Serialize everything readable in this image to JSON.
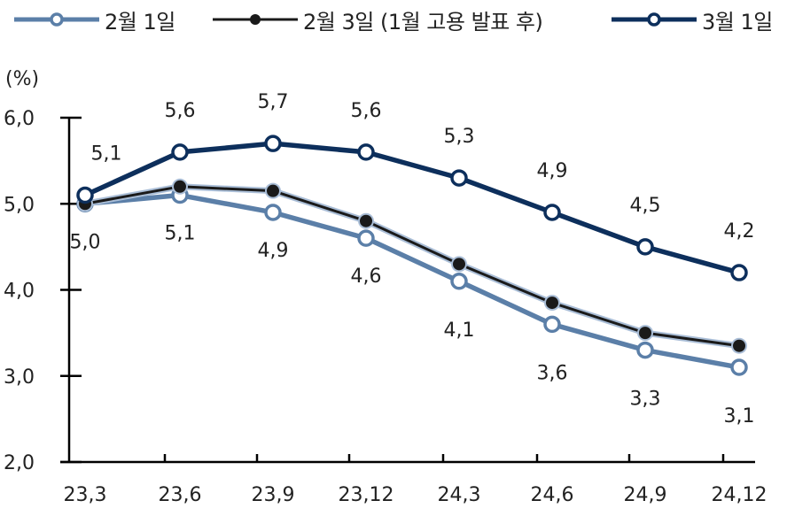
{
  "chart_data": {
    "type": "line",
    "title": "",
    "ylabel": "(%)",
    "xlabel": "",
    "ylim": [
      2.0,
      6.0
    ],
    "yticks": [
      "6.0",
      "5.0",
      "4.0",
      "3.0",
      "2.0"
    ],
    "categories": [
      "23.3",
      "23.6",
      "23.9",
      "23.12",
      "24.3",
      "24.6",
      "24.9",
      "24.12"
    ],
    "grid": false,
    "legend_position": "top",
    "series": [
      {
        "name": "2월 1일",
        "color": "#5b7fa8",
        "marker": "open-circle",
        "values": [
          5.0,
          5.1,
          4.9,
          4.6,
          4.1,
          3.6,
          3.3,
          3.1
        ],
        "labels": [
          "5.0",
          "5.1",
          "4.9",
          "4.6",
          "4.1",
          "3.6",
          "3.3",
          "3.1"
        ],
        "label_position": "below"
      },
      {
        "name": "2월 3일 (1월 고용 발표 후)",
        "color": "#1a1a1a",
        "marker": "filled-circle",
        "values": [
          5.0,
          5.2,
          5.15,
          4.8,
          4.3,
          3.85,
          3.5,
          3.35
        ],
        "labels": [],
        "label_position": "none"
      },
      {
        "name": "3월 1일",
        "color": "#0d2f5c",
        "marker": "open-circle",
        "values": [
          5.1,
          5.6,
          5.7,
          5.6,
          5.3,
          4.9,
          4.5,
          4.2
        ],
        "labels": [
          "5.1",
          "5.6",
          "5.7",
          "5.6",
          "5.3",
          "4.9",
          "4.5",
          "4.2"
        ],
        "label_position": "above"
      }
    ]
  },
  "legend": {
    "items": [
      {
        "label": "2월 1일",
        "color": "#5b7fa8",
        "marker": "open-circle"
      },
      {
        "label": "2월 3일 (1월 고용 발표 후)",
        "color": "#1a1a1a",
        "marker": "filled-circle"
      },
      {
        "label": "3월 1일",
        "color": "#0d2f5c",
        "marker": "open-circle"
      }
    ]
  },
  "axis": {
    "y_unit": "(%)"
  }
}
